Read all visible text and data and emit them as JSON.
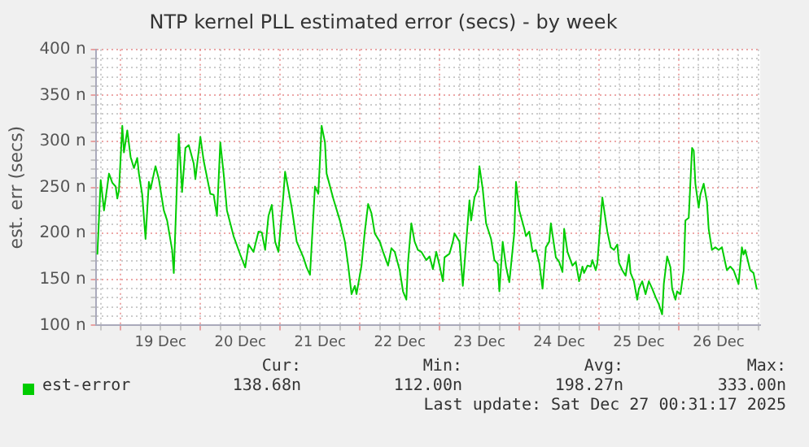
{
  "chart_data": {
    "type": "line",
    "title": "NTP kernel PLL estimated error (secs) - by week",
    "ylabel": "est. err (secs)",
    "xlim": [
      "2025-12-18T16:30",
      "2025-12-27T00:30"
    ],
    "xticks": [
      {
        "value": "2025-12-18T18:00",
        "label": null
      },
      {
        "value": "2025-12-19T00:00",
        "label": null
      },
      {
        "value": "2025-12-19T06:00",
        "label": null
      },
      {
        "value": "2025-12-19T12:00",
        "label": "19 Dec"
      },
      {
        "value": "2025-12-19T18:00",
        "label": null
      },
      {
        "value": "2025-12-20T00:00",
        "label": null
      },
      {
        "value": "2025-12-20T06:00",
        "label": null
      },
      {
        "value": "2025-12-20T12:00",
        "label": "20 Dec"
      },
      {
        "value": "2025-12-20T18:00",
        "label": null
      },
      {
        "value": "2025-12-21T00:00",
        "label": null
      },
      {
        "value": "2025-12-21T06:00",
        "label": null
      },
      {
        "value": "2025-12-21T12:00",
        "label": "21 Dec"
      },
      {
        "value": "2025-12-21T18:00",
        "label": null
      },
      {
        "value": "2025-12-22T00:00",
        "label": null
      },
      {
        "value": "2025-12-22T06:00",
        "label": null
      },
      {
        "value": "2025-12-22T12:00",
        "label": "22 Dec"
      },
      {
        "value": "2025-12-22T18:00",
        "label": null
      },
      {
        "value": "2025-12-23T00:00",
        "label": null
      },
      {
        "value": "2025-12-23T06:00",
        "label": null
      },
      {
        "value": "2025-12-23T12:00",
        "label": "23 Dec"
      },
      {
        "value": "2025-12-23T18:00",
        "label": null
      },
      {
        "value": "2025-12-24T00:00",
        "label": null
      },
      {
        "value": "2025-12-24T06:00",
        "label": null
      },
      {
        "value": "2025-12-24T12:00",
        "label": "24 Dec"
      },
      {
        "value": "2025-12-24T18:00",
        "label": null
      },
      {
        "value": "2025-12-25T00:00",
        "label": null
      },
      {
        "value": "2025-12-25T06:00",
        "label": null
      },
      {
        "value": "2025-12-25T12:00",
        "label": "25 Dec"
      },
      {
        "value": "2025-12-25T18:00",
        "label": null
      },
      {
        "value": "2025-12-26T00:00",
        "label": null
      },
      {
        "value": "2025-12-26T06:00",
        "label": null
      },
      {
        "value": "2025-12-26T12:00",
        "label": "26 Dec"
      },
      {
        "value": "2025-12-26T18:00",
        "label": null
      },
      {
        "value": "2025-12-27T00:00",
        "label": null
      }
    ],
    "ylim": [
      100,
      400
    ],
    "yticks": [
      {
        "value": 100,
        "label": "100 n"
      },
      {
        "value": 110,
        "label": null
      },
      {
        "value": 120,
        "label": null
      },
      {
        "value": 130,
        "label": null
      },
      {
        "value": 140,
        "label": null
      },
      {
        "value": 150,
        "label": "150 n"
      },
      {
        "value": 160,
        "label": null
      },
      {
        "value": 170,
        "label": null
      },
      {
        "value": 180,
        "label": null
      },
      {
        "value": 190,
        "label": null
      },
      {
        "value": 200,
        "label": "200 n"
      },
      {
        "value": 210,
        "label": null
      },
      {
        "value": 220,
        "label": null
      },
      {
        "value": 230,
        "label": null
      },
      {
        "value": 240,
        "label": null
      },
      {
        "value": 250,
        "label": "250 n"
      },
      {
        "value": 260,
        "label": null
      },
      {
        "value": 270,
        "label": null
      },
      {
        "value": 280,
        "label": null
      },
      {
        "value": 290,
        "label": null
      },
      {
        "value": 300,
        "label": "300 n"
      },
      {
        "value": 310,
        "label": null
      },
      {
        "value": 320,
        "label": null
      },
      {
        "value": 330,
        "label": null
      },
      {
        "value": 340,
        "label": null
      },
      {
        "value": 350,
        "label": "350 n"
      },
      {
        "value": 360,
        "label": null
      },
      {
        "value": 370,
        "label": null
      },
      {
        "value": 380,
        "label": null
      },
      {
        "value": 390,
        "label": null
      },
      {
        "value": 400,
        "label": "400 n"
      }
    ],
    "grid": true,
    "legend": "bottom",
    "marker": "none",
    "line_style": "solid",
    "annotations": [
      "Cur:",
      "138.68n",
      "Min:",
      "112.00n",
      "Avg:",
      "198.27n",
      "Max:",
      "333.00n",
      "Last update: Sat Dec 27 00:31:17 2025"
    ],
    "series": [
      {
        "name": "est-error",
        "color": "#00cc00",
        "x": [
          "2025-12-18T17:00",
          "2025-12-18T18:00",
          "2025-12-18T19:00",
          "2025-12-18T20:30",
          "2025-12-18T21:30",
          "2025-12-18T22:30",
          "2025-12-18T23:00",
          "2025-12-18T23:30",
          "2025-12-19T00:30",
          "2025-12-19T01:00",
          "2025-12-19T02:00",
          "2025-12-19T03:00",
          "2025-12-19T04:00",
          "2025-12-19T05:00",
          "2025-12-19T05:30",
          "2025-12-19T06:30",
          "2025-12-19T07:30",
          "2025-12-19T08:30",
          "2025-12-19T09:00",
          "2025-12-19T10:00",
          "2025-12-19T10:30",
          "2025-12-19T11:30",
          "2025-12-19T13:00",
          "2025-12-19T14:00",
          "2025-12-19T15:30",
          "2025-12-19T16:00",
          "2025-12-19T17:30",
          "2025-12-19T18:30",
          "2025-12-19T19:30",
          "2025-12-19T20:30",
          "2025-12-19T22:00",
          "2025-12-19T22:30",
          "2025-12-20T00:00",
          "2025-12-20T01:00",
          "2025-12-20T03:00",
          "2025-12-20T04:00",
          "2025-12-20T05:00",
          "2025-12-20T06:00",
          "2025-12-20T07:00",
          "2025-12-20T08:00",
          "2025-12-20T10:00",
          "2025-12-20T12:00",
          "2025-12-20T13:30",
          "2025-12-20T14:30",
          "2025-12-20T16:00",
          "2025-12-20T17:30",
          "2025-12-20T18:30",
          "2025-12-20T19:30",
          "2025-12-20T20:30",
          "2025-12-20T21:30",
          "2025-12-20T22:30",
          "2025-12-20T23:30",
          "2025-12-21T01:00",
          "2025-12-21T01:30",
          "2025-12-21T03:30",
          "2025-12-21T05:00",
          "2025-12-21T07:00",
          "2025-12-21T08:00",
          "2025-12-21T09:00",
          "2025-12-21T10:30",
          "2025-12-21T11:30",
          "2025-12-21T12:30",
          "2025-12-21T13:30",
          "2025-12-21T14:00",
          "2025-12-21T16:00",
          "2025-12-21T18:00",
          "2025-12-21T19:30",
          "2025-12-21T20:30",
          "2025-12-21T21:30",
          "2025-12-21T22:30",
          "2025-12-21T23:00",
          "2025-12-22T00:30",
          "2025-12-22T01:30",
          "2025-12-22T02:30",
          "2025-12-22T03:30",
          "2025-12-22T04:30",
          "2025-12-22T06:00",
          "2025-12-22T07:00",
          "2025-12-22T08:30",
          "2025-12-22T09:30",
          "2025-12-22T10:30",
          "2025-12-22T12:00",
          "2025-12-22T13:00",
          "2025-12-22T14:00",
          "2025-12-22T14:30",
          "2025-12-22T15:30",
          "2025-12-22T16:30",
          "2025-12-22T17:30",
          "2025-12-22T18:30",
          "2025-12-22T20:00",
          "2025-12-22T21:00",
          "2025-12-22T22:00",
          "2025-12-22T23:00",
          "2025-12-23T00:00",
          "2025-12-23T01:00",
          "2025-12-23T01:30",
          "2025-12-23T03:00",
          "2025-12-23T04:00",
          "2025-12-23T04:30",
          "2025-12-23T06:00",
          "2025-12-23T07:00",
          "2025-12-23T09:00",
          "2025-12-23T09:30",
          "2025-12-23T10:30",
          "2025-12-23T11:30",
          "2025-12-23T12:00",
          "2025-12-23T13:00",
          "2025-12-23T14:00",
          "2025-12-23T15:30",
          "2025-12-23T16:30",
          "2025-12-23T17:30",
          "2025-12-23T18:00",
          "2025-12-23T19:00",
          "2025-12-23T20:00",
          "2025-12-23T21:00",
          "2025-12-23T22:30",
          "2025-12-23T23:00",
          "2025-12-24T00:00",
          "2025-12-24T01:30",
          "2025-12-24T02:00",
          "2025-12-24T03:00",
          "2025-12-24T04:00",
          "2025-12-24T05:00",
          "2025-12-24T06:00",
          "2025-12-24T07:00",
          "2025-12-24T08:00",
          "2025-12-24T09:00",
          "2025-12-24T09:30",
          "2025-12-24T11:00",
          "2025-12-24T12:00",
          "2025-12-24T13:00",
          "2025-12-24T13:30",
          "2025-12-24T14:30",
          "2025-12-24T16:00",
          "2025-12-24T17:00",
          "2025-12-24T18:00",
          "2025-12-24T19:00",
          "2025-12-24T19:30",
          "2025-12-24T20:30",
          "2025-12-24T21:30",
          "2025-12-24T22:00",
          "2025-12-24T23:00",
          "2025-12-24T23:30",
          "2025-12-25T01:00",
          "2025-12-25T02:00",
          "2025-12-25T02:30",
          "2025-12-25T03:30",
          "2025-12-25T04:30",
          "2025-12-25T05:30",
          "2025-12-25T06:00",
          "2025-12-25T07:00",
          "2025-12-25T08:00",
          "2025-12-25T09:00",
          "2025-12-25T09:30",
          "2025-12-25T10:30",
          "2025-12-25T11:30",
          "2025-12-25T12:00",
          "2025-12-25T13:00",
          "2025-12-25T14:00",
          "2025-12-25T15:00",
          "2025-12-25T16:00",
          "2025-12-25T17:00",
          "2025-12-25T18:00",
          "2025-12-25T19:00",
          "2025-12-25T19:30",
          "2025-12-25T20:30",
          "2025-12-25T21:30",
          "2025-12-25T22:00",
          "2025-12-25T23:00",
          "2025-12-25T23:30",
          "2025-12-26T00:30",
          "2025-12-26T01:30",
          "2025-12-26T02:00",
          "2025-12-26T03:00",
          "2025-12-26T04:00",
          "2025-12-26T04:30",
          "2025-12-26T05:00",
          "2025-12-26T06:00",
          "2025-12-26T06:30",
          "2025-12-26T07:30",
          "2025-12-26T08:30",
          "2025-12-26T09:00",
          "2025-12-26T10:00",
          "2025-12-26T11:00",
          "2025-12-26T12:00",
          "2025-12-26T13:00",
          "2025-12-26T14:00",
          "2025-12-26T14:30",
          "2025-12-26T15:30",
          "2025-12-26T16:30",
          "2025-12-26T18:00",
          "2025-12-26T19:00",
          "2025-12-26T19:30",
          "2025-12-26T20:00",
          "2025-12-26T21:30",
          "2025-12-26T22:30",
          "2025-12-26T23:30"
        ],
        "values": [
          177,
          258,
          225,
          265,
          255,
          251,
          238,
          247,
          317,
          288,
          312,
          283,
          271,
          282,
          265,
          242,
          194,
          256,
          248,
          265,
          273,
          259,
          225,
          214,
          182,
          157,
          308,
          245,
          293,
          296,
          276,
          259,
          305,
          279,
          243,
          242,
          219,
          299,
          265,
          225,
          197,
          177,
          163,
          188,
          180,
          202,
          201,
          182,
          219,
          231,
          191,
          180,
          242,
          267,
          228,
          191,
          174,
          163,
          155,
          251,
          243,
          317,
          299,
          265,
          238,
          214,
          191,
          165,
          134,
          143,
          134,
          165,
          202,
          232,
          222,
          200,
          191,
          180,
          165,
          184,
          180,
          160,
          137,
          128,
          168,
          211,
          191,
          182,
          180,
          171,
          175,
          161,
          180,
          165,
          148,
          174,
          178,
          191,
          200,
          191,
          143,
          236,
          214,
          239,
          248,
          273,
          248,
          211,
          194,
          171,
          167,
          137,
          191,
          164,
          147,
          201,
          256,
          225,
          205,
          197,
          202,
          180,
          182,
          168,
          140,
          185,
          191,
          211,
          174,
          169,
          158,
          205,
          180,
          165,
          169,
          148,
          164,
          157,
          165,
          164,
          171,
          160,
          168,
          239,
          214,
          202,
          185,
          182,
          188,
          168,
          160,
          154,
          177,
          157,
          148,
          128,
          140,
          148,
          134,
          148,
          140,
          131,
          123,
          112,
          145,
          175,
          163,
          140,
          128,
          137,
          134,
          160,
          214,
          217,
          293,
          290,
          254,
          228,
          242,
          254,
          234,
          205,
          182,
          185,
          182,
          185,
          168,
          160,
          164,
          160,
          145,
          185,
          177,
          182,
          160,
          157,
          139
        ]
      }
    ]
  }
}
